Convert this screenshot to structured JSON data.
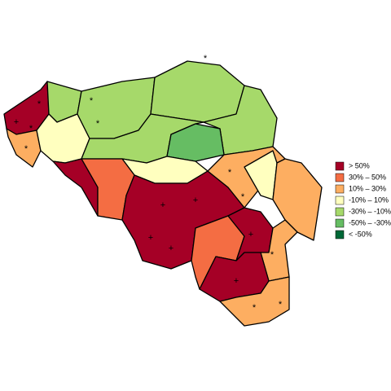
{
  "legend": {
    "entries": [
      {
        "label": ">  50%",
        "color": "#a50026"
      },
      {
        "label": "30%  –  50%",
        "color": "#f46d43"
      },
      {
        "label": "10%  –  30%",
        "color": "#fdae61"
      },
      {
        "label": "-10%  –  10%",
        "color": "#ffffbf"
      },
      {
        "label": "-30%  – -10%",
        "color": "#a6d96a"
      },
      {
        "label": "-50%  – -30%",
        "color": "#66bd63"
      },
      {
        "label": "< -50%",
        "color": "#006837"
      }
    ]
  },
  "map": {
    "markers": [
      "*",
      "+",
      "*",
      "*",
      "*",
      "*",
      "*",
      "+",
      "+",
      "+",
      "+",
      "+",
      "*",
      "*",
      "*",
      "+",
      "*",
      "*"
    ]
  }
}
